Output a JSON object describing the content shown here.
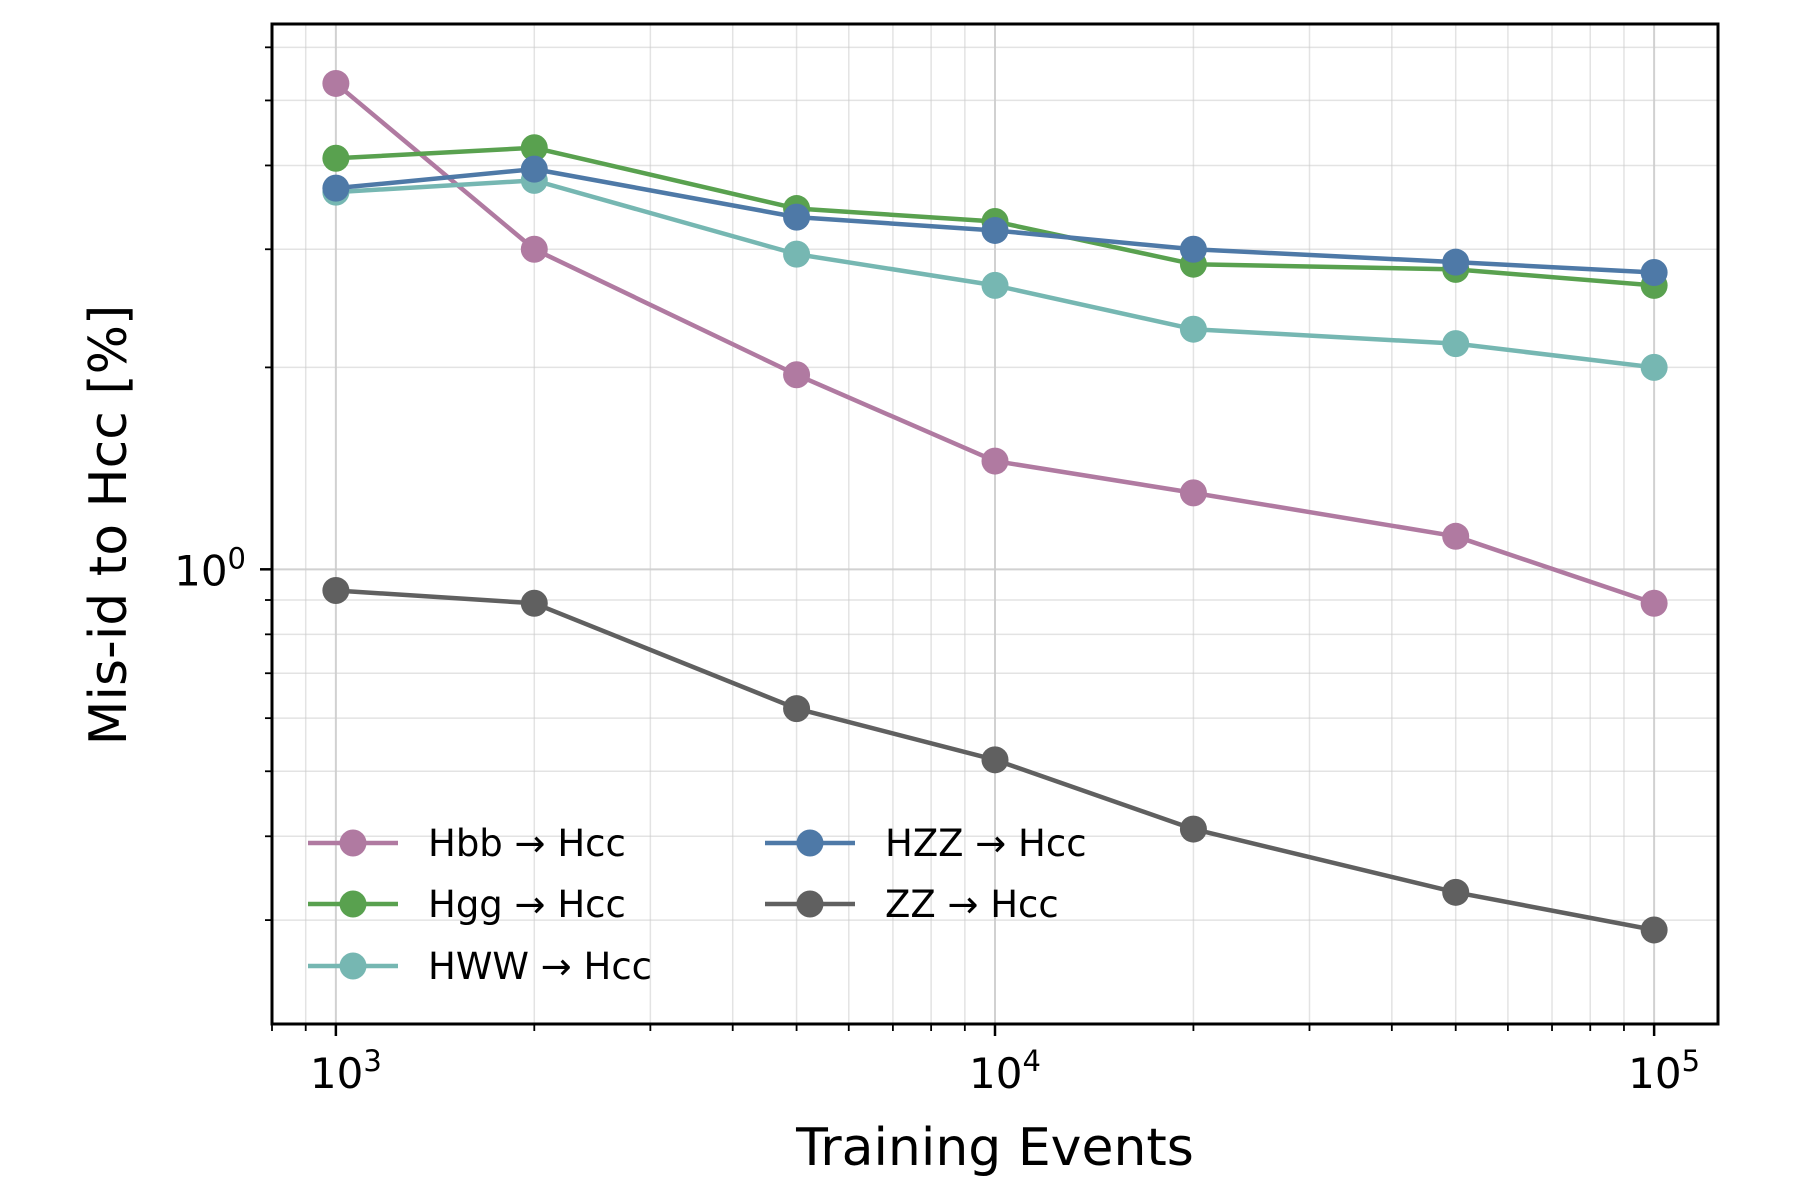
{
  "chart_data": {
    "type": "line",
    "xlabel": "Training Events",
    "ylabel": "Mis-id to Hcc [%]",
    "x_scale": "log",
    "y_scale": "log",
    "xlim": [
      800,
      125000
    ],
    "ylim": [
      0.21,
      6.5
    ],
    "grid": true,
    "legend_position": "lower-left",
    "legend_columns": 2,
    "x_ticks": [
      {
        "value": 1000,
        "base": "10",
        "exp": "3"
      },
      {
        "value": 10000,
        "base": "10",
        "exp": "4"
      },
      {
        "value": 100000,
        "base": "10",
        "exp": "5"
      }
    ],
    "y_ticks": [
      {
        "value": 1,
        "base": "10",
        "exp": "0"
      }
    ],
    "x": [
      1000,
      2000,
      5000,
      10000,
      20000,
      50000,
      100000
    ],
    "series": [
      {
        "name": "Hbb → Hcc",
        "color": "#b07aa1",
        "values": [
          5.3,
          3.0,
          1.95,
          1.45,
          1.3,
          1.12,
          0.89
        ]
      },
      {
        "name": "Hgg → Hcc",
        "color": "#59a14f",
        "values": [
          4.1,
          4.25,
          3.45,
          3.3,
          2.85,
          2.8,
          2.65
        ]
      },
      {
        "name": "HWW → Hcc",
        "color": "#76b7b2",
        "values": [
          3.65,
          3.8,
          2.95,
          2.65,
          2.28,
          2.17,
          2.0
        ]
      },
      {
        "name": "HZZ → Hcc",
        "color": "#4e79a7",
        "values": [
          3.7,
          3.95,
          3.35,
          3.2,
          3.0,
          2.87,
          2.77
        ]
      },
      {
        "name": "ZZ → Hcc",
        "color": "#606060",
        "values": [
          0.93,
          0.89,
          0.62,
          0.52,
          0.41,
          0.33,
          0.29
        ]
      }
    ]
  }
}
